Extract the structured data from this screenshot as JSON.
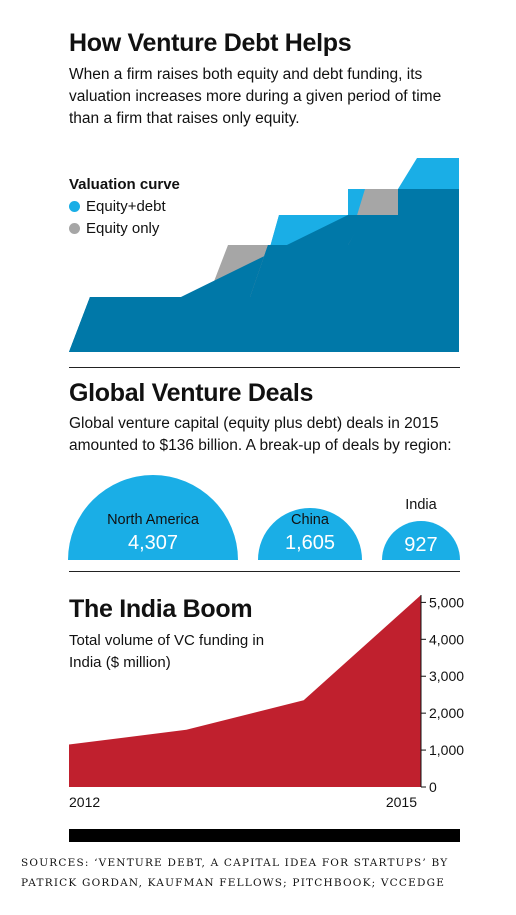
{
  "section1": {
    "title": "How Venture Debt Helps",
    "description": "When a firm raises both equity and debt funding, its valuation increases more during a given period of time than a firm that raises only equity.",
    "legend_title": "Valuation curve",
    "legend": [
      {
        "label": "Equity+debt",
        "color": "#1aaee6"
      },
      {
        "label": "Equity only",
        "color": "#a6a6a6"
      }
    ],
    "colors": {
      "equity_debt": "#1aaee6",
      "equity_only": "#a6a6a6",
      "overlap": "#0078a8"
    }
  },
  "section2": {
    "title": "Global Venture Deals",
    "description": "Global venture capital (equity plus debt) deals in 2015 amounted to $136 billion. A break-up of deals by region:",
    "bubble_color": "#1aaee6"
  },
  "section3": {
    "title": "The India Boom",
    "description": "Total volume of VC funding in India ($ million)",
    "area_color": "#c0202e"
  },
  "chart_data": [
    {
      "type": "bubble",
      "categories": [
        "North America",
        "China",
        "India"
      ],
      "values": [
        4307,
        1605,
        927
      ],
      "labels": [
        "4,307",
        "1,605",
        "927"
      ],
      "title": "Global Venture Deals"
    },
    {
      "type": "area",
      "x": [
        2012,
        2013,
        2014,
        2015
      ],
      "values": [
        1150,
        1550,
        2350,
        5200
      ],
      "x_tick_labels": [
        "2012",
        "2015"
      ],
      "y_ticks": [
        0,
        1000,
        2000,
        3000,
        4000,
        5000
      ],
      "y_tick_labels": [
        "0",
        "1,000",
        "2,000",
        "3,000",
        "4,000",
        "5,000"
      ],
      "ylim": [
        0,
        5200
      ],
      "axis_side": "right",
      "title": "The India Boom"
    }
  ],
  "sources": "Sources: ‘Venture Debt, A Capital Idea for Startups’ by Patrick Gordan, Kaufman Fellows; Pitchbook; VCCEdge"
}
